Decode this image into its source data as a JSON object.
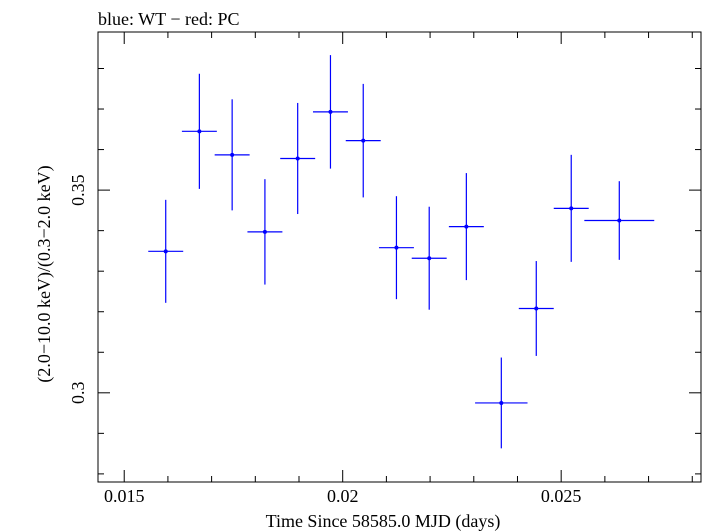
{
  "chart_data": {
    "type": "scatter",
    "title": "blue: WT − red: PC",
    "xlabel": "Time Since 58585.0 MJD (days)",
    "ylabel": "(2.0−10.0 keV)/(0.3−2.0 keV)",
    "xlim": [
      0.0144,
      0.0282
    ],
    "ylim": [
      0.278,
      0.389
    ],
    "x_ticks": [
      0.015,
      0.02,
      0.025
    ],
    "x_tick_labels": [
      "0.015",
      "0.02",
      "0.025"
    ],
    "y_ticks": [
      0.3,
      0.35
    ],
    "y_tick_labels": [
      "0.3",
      "0.35"
    ],
    "grid": false,
    "series": [
      {
        "color": "#0000ff",
        "points": [
          {
            "x": 0.01595,
            "y": 0.3349,
            "xerr": 0.0004,
            "yerr": 0.0127
          },
          {
            "x": 0.01672,
            "y": 0.3645,
            "xerr": 0.0004,
            "yerr": 0.0142
          },
          {
            "x": 0.01747,
            "y": 0.3587,
            "xerr": 0.0004,
            "yerr": 0.0137
          },
          {
            "x": 0.01822,
            "y": 0.3397,
            "xerr": 0.0004,
            "yerr": 0.013
          },
          {
            "x": 0.01897,
            "y": 0.3578,
            "xerr": 0.0004,
            "yerr": 0.0137
          },
          {
            "x": 0.01972,
            "y": 0.3693,
            "xerr": 0.0004,
            "yerr": 0.014
          },
          {
            "x": 0.02047,
            "y": 0.3622,
            "xerr": 0.0004,
            "yerr": 0.014
          },
          {
            "x": 0.02123,
            "y": 0.3358,
            "xerr": 0.0004,
            "yerr": 0.0127
          },
          {
            "x": 0.02198,
            "y": 0.3332,
            "xerr": 0.0004,
            "yerr": 0.0127
          },
          {
            "x": 0.02283,
            "y": 0.341,
            "xerr": 0.0004,
            "yerr": 0.0132
          },
          {
            "x": 0.02363,
            "y": 0.2975,
            "xerr": 0.0006,
            "yerr": 0.0112
          },
          {
            "x": 0.02443,
            "y": 0.3208,
            "xerr": 0.0004,
            "yerr": 0.0117
          },
          {
            "x": 0.02523,
            "y": 0.3455,
            "xerr": 0.0004,
            "yerr": 0.0132
          },
          {
            "x": 0.02633,
            "y": 0.3425,
            "xerr": 0.0008,
            "yerr": 0.0097
          }
        ]
      }
    ]
  }
}
